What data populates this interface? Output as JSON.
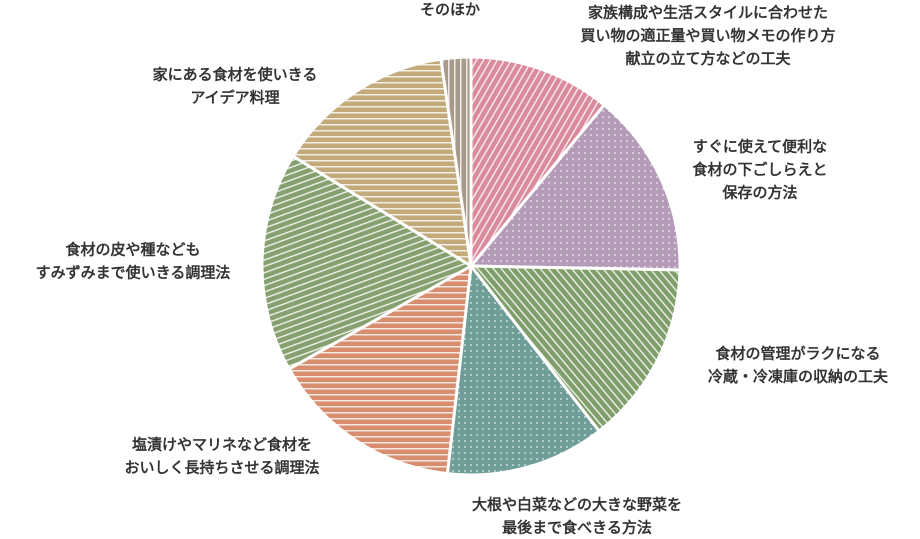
{
  "chart_data": {
    "type": "pie",
    "categories": [
      [
        "家族構成や生活スタイルに合わせた",
        "買い物の適正量や買い物メモの作り方",
        "献立の立て方などの工夫"
      ],
      [
        "すぐに使えて便利な",
        "食材の下ごしらえと",
        "保存の方法"
      ],
      [
        "食材の管理がラクになる",
        "冷蔵・冷凍庫の収納の工夫"
      ],
      [
        "大根や白菜などの大きな野菜を",
        "最後まで食べきる方法"
      ],
      [
        "塩漬けやマリネなど食材を",
        "おいしく長持ちさせる調理法"
      ],
      [
        "食材の皮や種なども",
        "すみずみまで使いきる調理法"
      ],
      [
        "家にある食材を使いきる",
        "アイデア料理"
      ],
      [
        "そのほか"
      ]
    ],
    "values": [
      11,
      14.3,
      14.2,
      12.3,
      15,
      17,
      13.9,
      2.3
    ],
    "colors": [
      "#d98a9c",
      "#b49bb8",
      "#7f9e6a",
      "#6f9d98",
      "#d88e6e",
      "#86a06f",
      "#c2aa7a",
      "#a89a8a"
    ]
  }
}
